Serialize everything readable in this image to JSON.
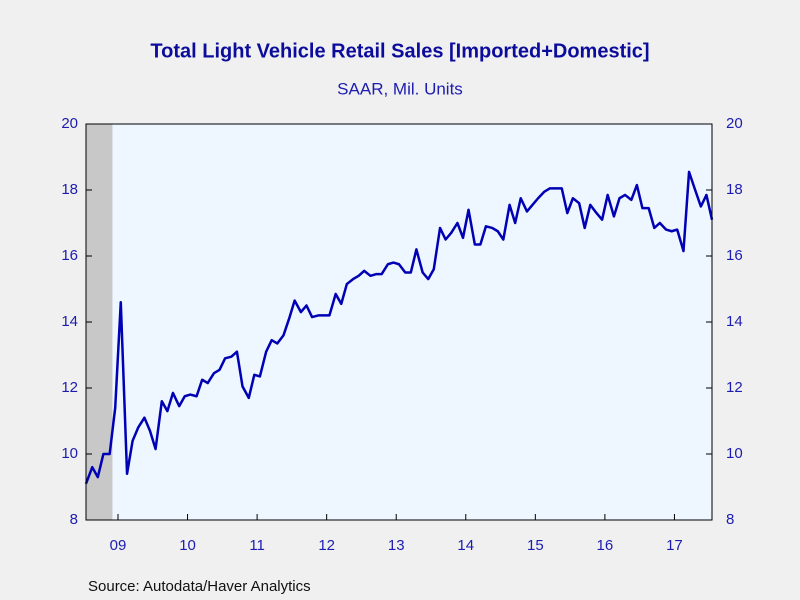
{
  "chart_data": {
    "type": "line",
    "title": "Total Light Vehicle Retail Sales [Imported+Domestic]",
    "subtitle": "SAAR, Mil. Units",
    "source": "Source:  Autodata/Haver Analytics",
    "x": [
      2009.04,
      2009.13,
      2009.21,
      2009.29,
      2009.38,
      2009.46,
      2009.54,
      2009.63,
      2009.71,
      2009.79,
      2009.88,
      2009.96,
      2010.04,
      2010.13,
      2010.21,
      2010.29,
      2010.38,
      2010.46,
      2010.54,
      2010.63,
      2010.71,
      2010.79,
      2010.88,
      2010.96,
      2011.04,
      2011.13,
      2011.21,
      2011.29,
      2011.38,
      2011.46,
      2011.54,
      2011.63,
      2011.71,
      2011.79,
      2011.88,
      2011.96,
      2012.04,
      2012.13,
      2012.21,
      2012.29,
      2012.38,
      2012.46,
      2012.54,
      2012.63,
      2012.71,
      2012.79,
      2012.88,
      2012.96,
      2013.04,
      2013.13,
      2013.21,
      2013.29,
      2013.38,
      2013.46,
      2013.54,
      2013.63,
      2013.71,
      2013.79,
      2013.88,
      2013.96,
      2014.04,
      2014.13,
      2014.21,
      2014.29,
      2014.38,
      2014.46,
      2014.54,
      2014.63,
      2014.71,
      2014.79,
      2014.88,
      2014.96,
      2015.04,
      2015.13,
      2015.21,
      2015.29,
      2015.38,
      2015.46,
      2015.54,
      2015.63,
      2015.71,
      2015.79,
      2015.88,
      2015.96,
      2016.04,
      2016.13,
      2016.21,
      2016.29,
      2016.38,
      2016.46,
      2016.54,
      2016.63,
      2016.71,
      2016.79,
      2016.88,
      2016.96,
      2017.04,
      2017.13,
      2017.21,
      2017.29,
      2017.38,
      2017.46,
      2017.54,
      2017.63,
      2017.71,
      2017.79,
      2017.88,
      2017.96,
      2018.04
    ],
    "series": [
      {
        "name": "Total Light Vehicle Retail Sales",
        "color": "#0000b4",
        "values": [
          9.1,
          9.6,
          9.3,
          10.0,
          10.0,
          11.4,
          14.6,
          9.4,
          10.4,
          10.8,
          11.1,
          10.7,
          10.15,
          11.6,
          11.3,
          11.85,
          11.45,
          11.75,
          11.8,
          11.75,
          12.25,
          12.15,
          12.45,
          12.55,
          12.9,
          12.95,
          13.1,
          12.05,
          11.7,
          12.4,
          12.35,
          13.1,
          13.45,
          13.35,
          13.6,
          14.1,
          14.65,
          14.3,
          14.5,
          14.15,
          14.2,
          14.2,
          14.2,
          14.85,
          14.55,
          15.15,
          15.3,
          15.4,
          15.55,
          15.4,
          15.45,
          15.45,
          15.75,
          15.8,
          15.75,
          15.5,
          15.5,
          16.2,
          15.5,
          15.3,
          15.6,
          16.85,
          16.5,
          16.7,
          17.0,
          16.55,
          17.4,
          16.35,
          16.35,
          16.9,
          16.85,
          16.75,
          16.5,
          17.55,
          17.0,
          17.75,
          17.35,
          17.55,
          17.75,
          17.95,
          18.05,
          18.05,
          18.05,
          17.3,
          17.75,
          17.6,
          16.85,
          17.55,
          17.3,
          17.1,
          17.85,
          17.2,
          17.75,
          17.85,
          17.7,
          18.15,
          17.45,
          17.45,
          16.85,
          17.0,
          16.8,
          16.75,
          16.8,
          16.15,
          18.55,
          18.05,
          17.5,
          17.85,
          17.1
        ]
      }
    ],
    "recession": [
      2009.0,
      2009.42
    ],
    "recession_color": "#c8c8c8",
    "xlim": [
      2009.04,
      2018.04
    ],
    "xticks": [
      {
        "value": 2009.5,
        "label": "09"
      },
      {
        "value": 2010.5,
        "label": "10"
      },
      {
        "value": 2011.5,
        "label": "11"
      },
      {
        "value": 2012.5,
        "label": "12"
      },
      {
        "value": 2013.5,
        "label": "13"
      },
      {
        "value": 2014.5,
        "label": "14"
      },
      {
        "value": 2015.5,
        "label": "15"
      },
      {
        "value": 2016.5,
        "label": "16"
      },
      {
        "value": 2017.5,
        "label": "17"
      }
    ],
    "ylim": [
      8,
      20
    ],
    "yticks": [
      8,
      10,
      12,
      14,
      16,
      18,
      20
    ],
    "y2lim": [
      8,
      20
    ],
    "y2ticks": [
      8,
      10,
      12,
      14,
      16,
      18,
      20
    ]
  }
}
